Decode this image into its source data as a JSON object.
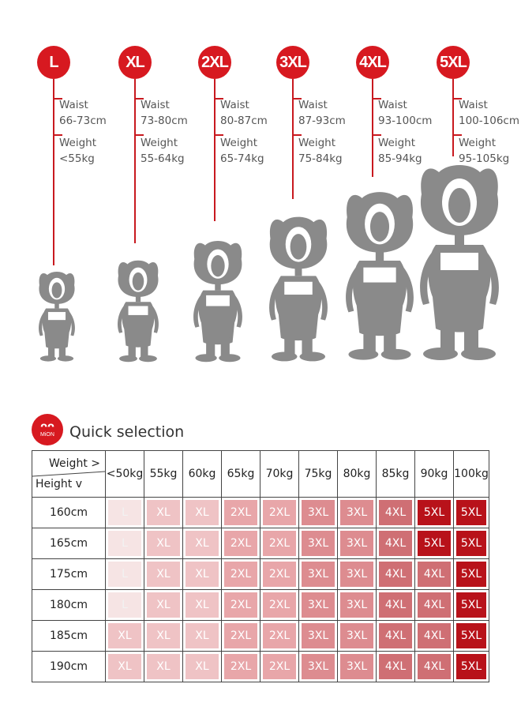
{
  "sizes": [
    {
      "label": "L",
      "waist_label": "Waist",
      "waist": "66-73cm",
      "weight_label": "Weight",
      "weight": "<55kg"
    },
    {
      "label": "XL",
      "waist_label": "Waist",
      "waist": "73-80cm",
      "weight_label": "Weight",
      "weight": "55-64kg"
    },
    {
      "label": "2XL",
      "waist_label": "Waist",
      "waist": "80-87cm",
      "weight_label": "Weight",
      "weight": "65-74kg"
    },
    {
      "label": "3XL",
      "waist_label": "Waist",
      "waist": "87-93cm",
      "weight_label": "Weight",
      "weight": "75-84kg"
    },
    {
      "label": "4XL",
      "waist_label": "Waist",
      "waist": "93-100cm",
      "weight_label": "Weight",
      "weight": "85-94kg"
    },
    {
      "label": "5XL",
      "waist_label": "Waist",
      "waist": "100-106cm",
      "weight_label": "Weight",
      "weight": "95-105kg"
    }
  ],
  "quick_selection": {
    "logo_text": "MiON",
    "title": "Quick selection",
    "corner_weight_label": "Weight >",
    "corner_height_label": "Height v",
    "weights": [
      "<50kg",
      "55kg",
      "60kg",
      "65kg",
      "70kg",
      "75kg",
      "80kg",
      "85kg",
      "90kg",
      "100kg"
    ],
    "rows": [
      {
        "height": "160cm",
        "cells": [
          "L",
          "XL",
          "XL",
          "2XL",
          "2XL",
          "3XL",
          "3XL",
          "4XL",
          "5XL",
          "5XL"
        ]
      },
      {
        "height": "165cm",
        "cells": [
          "L",
          "XL",
          "XL",
          "2XL",
          "2XL",
          "3XL",
          "3XL",
          "4XL",
          "5XL",
          "5XL"
        ]
      },
      {
        "height": "175cm",
        "cells": [
          "L",
          "XL",
          "XL",
          "2XL",
          "2XL",
          "3XL",
          "3XL",
          "4XL",
          "4XL",
          "5XL"
        ]
      },
      {
        "height": "180cm",
        "cells": [
          "L",
          "XL",
          "XL",
          "2XL",
          "2XL",
          "3XL",
          "3XL",
          "4XL",
          "4XL",
          "5XL"
        ]
      },
      {
        "height": "185cm",
        "cells": [
          "XL",
          "XL",
          "XL",
          "2XL",
          "2XL",
          "3XL",
          "3XL",
          "4XL",
          "4XL",
          "5XL"
        ]
      },
      {
        "height": "190cm",
        "cells": [
          "XL",
          "XL",
          "XL",
          "2XL",
          "2XL",
          "3XL",
          "3XL",
          "4XL",
          "4XL",
          "5XL"
        ]
      }
    ]
  },
  "colors": {
    "accent": "#d71920",
    "figure": "#8a8a8a",
    "cell_L": "#f6e4e4",
    "cell_XL": "#efc3c5",
    "cell_2XL": "#e8a6a9",
    "cell_3XL": "#dd8c90",
    "cell_4XL": "#cf6f74",
    "cell_5XL": "#b8121a"
  }
}
